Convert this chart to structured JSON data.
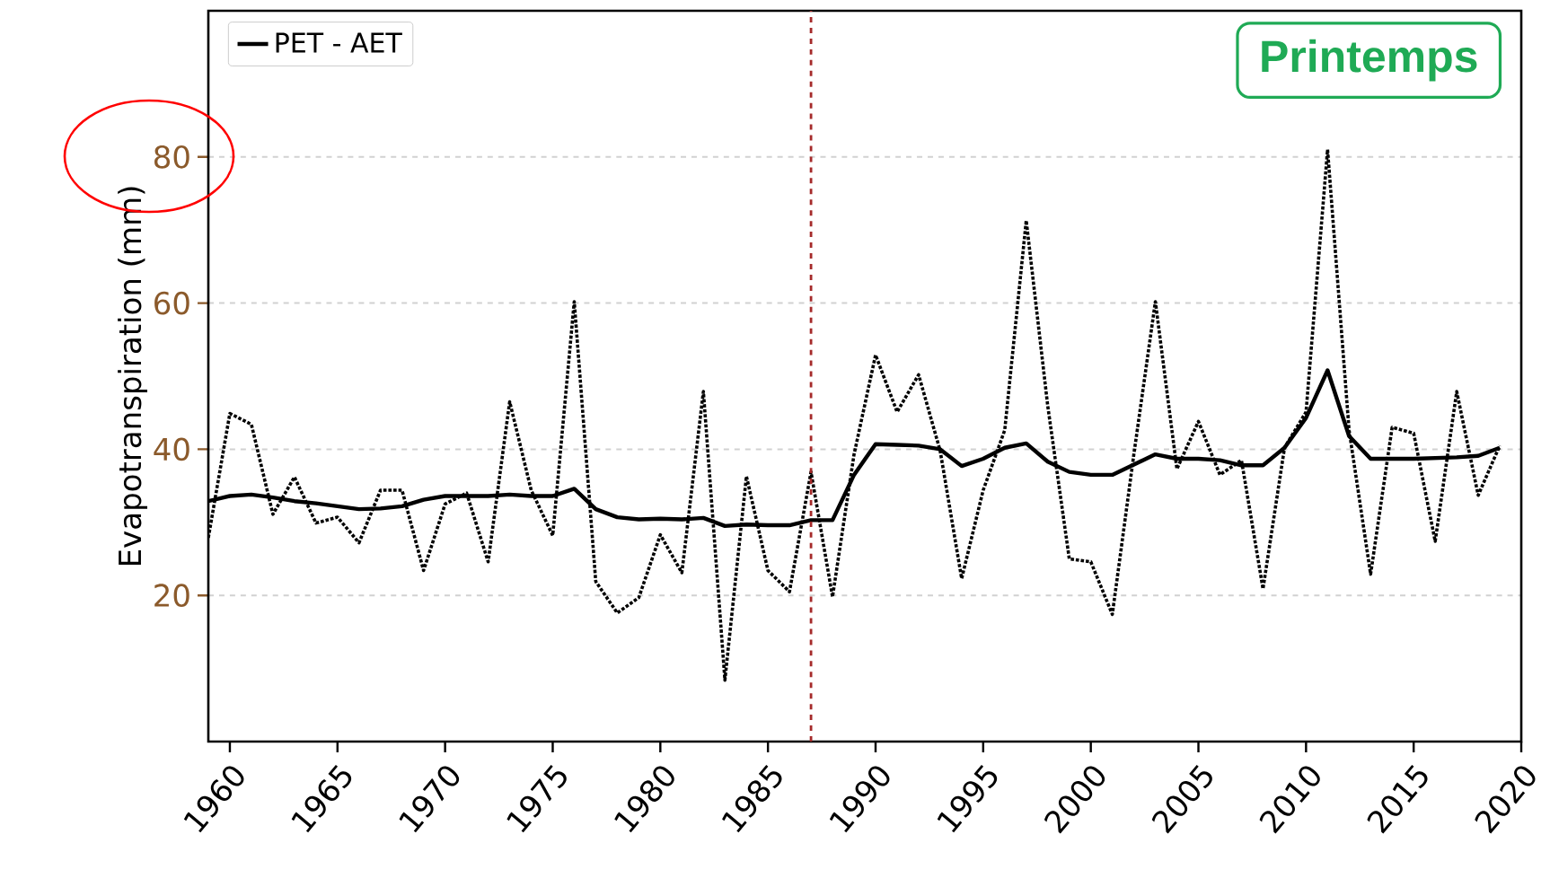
{
  "chart_data": {
    "type": "line",
    "ylabel": "Evapotranspiration (mm)",
    "annotations": [
      "Printemps"
    ],
    "x": [
      1959,
      1960,
      1961,
      1962,
      1963,
      1964,
      1965,
      1966,
      1967,
      1968,
      1969,
      1970,
      1971,
      1972,
      1973,
      1974,
      1975,
      1976,
      1977,
      1978,
      1979,
      1980,
      1981,
      1982,
      1983,
      1984,
      1985,
      1986,
      1987,
      1988,
      1989,
      1990,
      1991,
      1992,
      1993,
      1994,
      1995,
      1996,
      1997,
      1998,
      1999,
      2000,
      2001,
      2002,
      2003,
      2004,
      2005,
      2006,
      2007,
      2008,
      2009,
      2010,
      2011,
      2012,
      2013,
      2014,
      2015,
      2016,
      2017,
      2018,
      2019
    ],
    "xlim": [
      1959,
      2020
    ],
    "xticks": [
      1960,
      1965,
      1970,
      1975,
      1980,
      1985,
      1990,
      1995,
      2000,
      2005,
      2010,
      2015,
      2020
    ],
    "ylim": [
      0,
      100
    ],
    "yticks": [
      20,
      40,
      60,
      80
    ],
    "grid": "y",
    "legend": "top left",
    "series": [
      {
        "color": "#000000",
        "line_style": "dotted",
        "values": [
          27.9,
          44.9,
          43.4,
          31.1,
          36.2,
          29.9,
          30.7,
          27.2,
          34.4,
          34.4,
          23.4,
          32.5,
          34.0,
          24.6,
          46.5,
          34.4,
          28.2,
          60.2,
          21.9,
          17.6,
          19.7,
          28.3,
          23.1,
          47.9,
          8.4,
          36.3,
          23.4,
          20.5,
          36.9,
          19.8,
          39.3,
          52.9,
          45.1,
          50.2,
          39.8,
          22.3,
          34.4,
          42.6,
          71.3,
          45.9,
          25.0,
          24.6,
          17.4,
          39.3,
          60.2,
          37.3,
          43.8,
          36.5,
          38.5,
          20.9,
          40.2,
          45.1,
          81,
          42.6,
          22.9,
          43.0,
          42.2,
          27.4,
          47.9,
          33.7,
          40.5
        ]
      },
      {
        "name": "PET - AET",
        "color": "#000000",
        "line_style": "solid",
        "values": [
          32.9,
          33.6,
          33.8,
          33.4,
          32.9,
          32.6,
          32.2,
          31.8,
          31.9,
          32.2,
          33.1,
          33.6,
          33.6,
          33.6,
          33.8,
          33.6,
          33.6,
          34.6,
          31.8,
          30.7,
          30.4,
          30.5,
          30.4,
          30.6,
          29.5,
          29.7,
          29.6,
          29.6,
          30.3,
          30.3,
          36.5,
          40.7,
          40.6,
          40.5,
          40.0,
          37.7,
          38.7,
          40.2,
          40.8,
          38.3,
          36.9,
          36.5,
          36.5,
          37.9,
          39.3,
          38.7,
          38.7,
          38.5,
          37.8,
          37.8,
          40.2,
          44.3,
          50.8,
          41.8,
          38.7,
          38.7,
          38.7,
          38.8,
          38.9,
          39.1,
          40.2
        ]
      }
    ],
    "ref_lines": [
      {
        "axis": "x",
        "value": 1987,
        "color": "#a52a2a",
        "line_style": "dashed"
      }
    ]
  }
}
